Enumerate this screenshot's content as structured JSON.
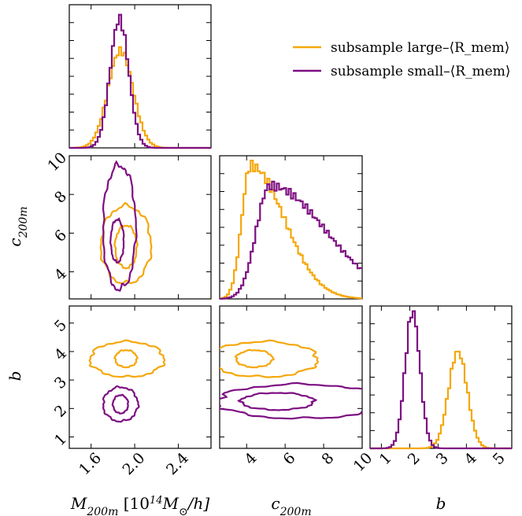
{
  "chart_data": {
    "type": "corner",
    "colors": {
      "large": "#f5a70a",
      "small": "#7d0f82"
    },
    "legend": {
      "placement": "top-right",
      "entries": [
        {
          "key": "large",
          "text": "subsample large–⟨R_mem⟩"
        },
        {
          "key": "small",
          "text": "subsample small–⟨R_mem⟩"
        }
      ]
    },
    "parameters": [
      {
        "key": "M",
        "label": "M_200m [10^14 M_⊙/h]",
        "range": [
          1.4,
          2.7
        ],
        "ticks": [
          1.6,
          2.0,
          2.4
        ],
        "tick_labels": [
          "1.6",
          "2.0",
          "2.4"
        ]
      },
      {
        "key": "c",
        "label": "c_200m",
        "range": [
          2.6,
          10
        ],
        "ticks": [
          4,
          6,
          8,
          10
        ],
        "tick_labels": [
          "4",
          "6",
          "8",
          "10"
        ]
      },
      {
        "key": "b",
        "label": "b",
        "range": [
          0.6,
          5.6
        ],
        "ticks": [
          1,
          2,
          3,
          4,
          5
        ],
        "tick_labels": [
          "1",
          "2",
          "3",
          "4",
          "5"
        ]
      }
    ],
    "marginals": [
      {
        "param": "M",
        "series": [
          {
            "key": "large",
            "mean": 1.87,
            "sigma": 0.115,
            "peak": 0.68
          },
          {
            "key": "small",
            "mean": 1.86,
            "sigma": 0.085,
            "peak": 0.9
          }
        ]
      },
      {
        "param": "c",
        "series": [
          {
            "key": "large",
            "mean": 4.2,
            "sigma_left": 0.45,
            "sigma_right": 1.75,
            "peak": 0.93
          },
          {
            "key": "small",
            "mean": 5.2,
            "sigma_left": 0.7,
            "sigma_right": 2.9,
            "peak": 0.79
          }
        ]
      },
      {
        "param": "b",
        "series": [
          {
            "key": "large",
            "mean": 3.7,
            "sigma": 0.33,
            "peak": 0.68
          },
          {
            "key": "small",
            "mean": 2.1,
            "sigma": 0.26,
            "peak": 0.96
          }
        ]
      }
    ],
    "contours": [
      {
        "x": "M",
        "y": "c",
        "series": [
          {
            "key": "large",
            "levels": [
              {
                "cx": 1.92,
                "cy": 5.3,
                "rx": 0.1,
                "ry": 1.1
              },
              {
                "cx": 1.92,
                "cy": 5.4,
                "rx": 0.23,
                "ry": 2.0
              }
            ]
          },
          {
            "key": "small",
            "levels": [
              {
                "cx": 1.84,
                "cy": 5.6,
                "rx": 0.06,
                "ry": 1.1
              },
              {
                "cx": 1.86,
                "cy": 6.3,
                "rx": 0.15,
                "ry": 3.2
              }
            ]
          }
        ]
      },
      {
        "x": "M",
        "y": "b",
        "series": [
          {
            "key": "large",
            "levels": [
              {
                "cx": 1.92,
                "cy": 3.75,
                "rx": 0.1,
                "ry": 0.3
              },
              {
                "cx": 1.93,
                "cy": 3.73,
                "rx": 0.34,
                "ry": 0.62
              }
            ]
          },
          {
            "key": "small",
            "levels": [
              {
                "cx": 1.87,
                "cy": 2.15,
                "rx": 0.07,
                "ry": 0.32
              },
              {
                "cx": 1.87,
                "cy": 2.15,
                "rx": 0.16,
                "ry": 0.6
              }
            ]
          }
        ]
      },
      {
        "x": "c",
        "y": "b",
        "series": [
          {
            "key": "large",
            "levels": [
              {
                "cx": 4.4,
                "cy": 3.75,
                "rx": 0.95,
                "ry": 0.3
              },
              {
                "cx": 4.9,
                "cy": 3.73,
                "rx": 2.8,
                "ry": 0.62
              }
            ]
          },
          {
            "key": "small",
            "levels": [
              {
                "cx": 5.6,
                "cy": 2.25,
                "rx": 1.9,
                "ry": 0.3
              },
              {
                "cx": 6.8,
                "cy": 2.25,
                "rx": 4.3,
                "ry": 0.6
              }
            ]
          }
        ]
      }
    ]
  }
}
